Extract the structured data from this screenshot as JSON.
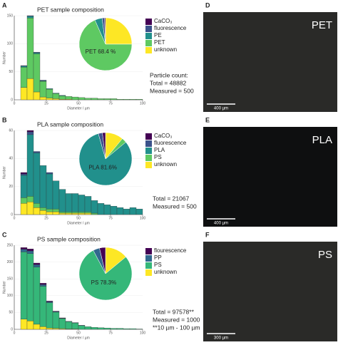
{
  "chart_data": [
    {
      "type": "histogram",
      "label": "A",
      "title": "PET sample composition",
      "xlabel": "Diameter / µm",
      "ylabel": "Number",
      "bins": [
        5,
        10,
        15,
        20,
        25,
        30,
        35,
        40,
        45,
        50,
        55,
        60,
        65,
        70,
        75,
        80,
        85,
        90,
        95,
        100
      ],
      "xlim": [
        0,
        100
      ],
      "xticks": [
        0,
        25,
        50,
        75,
        100
      ],
      "ylim": [
        0,
        150
      ],
      "yticks": [
        0,
        50,
        100,
        150
      ],
      "series": [
        {
          "color": "#fde725",
          "values": [
            22,
            38,
            14,
            5,
            3,
            2,
            1,
            1,
            0,
            0,
            0,
            0,
            0,
            0,
            0,
            0,
            0,
            0,
            0
          ]
        },
        {
          "color": "#5ec962",
          "values": [
            36,
            108,
            68,
            28,
            16,
            9,
            6,
            5,
            5,
            4,
            3,
            3,
            2,
            2,
            2,
            1,
            1,
            1,
            1
          ]
        },
        {
          "color": "#21908c",
          "values": [
            2,
            3,
            2,
            1,
            1,
            1,
            1,
            0,
            0,
            0,
            0,
            0,
            0,
            0,
            0,
            0,
            0,
            0,
            0
          ]
        },
        {
          "color": "#3b528b",
          "values": [
            1,
            1,
            1,
            1,
            0,
            0,
            0,
            0,
            0,
            0,
            0,
            0,
            0,
            0,
            0,
            0,
            0,
            0,
            0
          ]
        }
      ],
      "pie": {
        "type": "pie",
        "categories": [
          "CaCO₃",
          "fluorescence",
          "PE",
          "PET",
          "unknown"
        ],
        "values": [
          0.6,
          1.5,
          4.5,
          68.4,
          25
        ],
        "colors": [
          "#440154",
          "#3b528b",
          "#21908c",
          "#5ec962",
          "#fde725"
        ],
        "value_labels": [
          null,
          null,
          null,
          "PET 68.4 %",
          null
        ]
      },
      "notes": [
        "Particle count:",
        "Total = 48882",
        "Measured = 500"
      ]
    },
    {
      "type": "histogram",
      "label": "B",
      "title": "PLA sample composition",
      "xlabel": "Diameter / µm",
      "ylabel": "Number",
      "bins": [
        5,
        10,
        15,
        20,
        25,
        30,
        35,
        40,
        45,
        50,
        55,
        60,
        65,
        70,
        75,
        80,
        85,
        90,
        95,
        100
      ],
      "xlim": [
        0,
        100
      ],
      "xticks": [
        0,
        25,
        50,
        75,
        100
      ],
      "ylim": [
        0,
        60
      ],
      "yticks": [
        0,
        20,
        40,
        60
      ],
      "series": [
        {
          "color": "#fde725",
          "values": [
            8,
            9,
            5,
            3,
            2,
            2,
            1,
            1,
            1,
            1,
            1,
            0,
            0,
            0,
            0,
            0,
            0,
            0,
            0
          ]
        },
        {
          "color": "#5ec962",
          "values": [
            4,
            4,
            3,
            2,
            2,
            2,
            1,
            1,
            1,
            1,
            1,
            1,
            0,
            0,
            0,
            0,
            0,
            0,
            0
          ]
        },
        {
          "color": "#21908c",
          "values": [
            16,
            44,
            36,
            30,
            25,
            20,
            16,
            13,
            13,
            12,
            11,
            9,
            8,
            7,
            6,
            5,
            4,
            5,
            4
          ]
        },
        {
          "color": "#3b528b",
          "values": [
            1,
            2,
            1,
            0,
            1,
            0,
            0,
            0,
            0,
            0,
            0,
            0,
            0,
            0,
            0,
            0,
            0,
            0,
            0
          ]
        },
        {
          "color": "#440154",
          "values": [
            1,
            1,
            0,
            0,
            0,
            0,
            0,
            0,
            0,
            0,
            0,
            0,
            0,
            0,
            0,
            0,
            0,
            0,
            0
          ]
        }
      ],
      "pie": {
        "type": "pie",
        "categories": [
          "CaCO₃",
          "fluorescence",
          "PLA",
          "PS",
          "unknown"
        ],
        "values": [
          1.9,
          2.5,
          81.6,
          3,
          11
        ],
        "colors": [
          "#440154",
          "#3b528b",
          "#21908c",
          "#5ec962",
          "#fde725"
        ],
        "value_labels": [
          null,
          null,
          "PLA 81.6%",
          null,
          null
        ]
      },
      "notes": [
        "Total = 21067",
        "Measured = 500"
      ]
    },
    {
      "type": "histogram",
      "label": "C",
      "title": "PS sample composition",
      "xlabel": "Diameter / µm",
      "ylabel": "Number",
      "bins": [
        5,
        10,
        15,
        20,
        25,
        30,
        35,
        40,
        45,
        50,
        55,
        60,
        65,
        70,
        75,
        80,
        85,
        90,
        95,
        100
      ],
      "xlim": [
        0,
        100
      ],
      "xticks": [
        0,
        25,
        50,
        75,
        100
      ],
      "ylim": [
        0,
        250
      ],
      "yticks": [
        0,
        50,
        100,
        150,
        200,
        250
      ],
      "series": [
        {
          "color": "#fde725",
          "values": [
            30,
            25,
            15,
            8,
            4,
            3,
            2,
            1,
            1,
            0,
            0,
            0,
            0,
            0,
            0,
            0,
            0,
            0,
            0
          ]
        },
        {
          "color": "#35b779",
          "values": [
            200,
            200,
            170,
            120,
            75,
            48,
            30,
            22,
            18,
            11,
            8,
            6,
            5,
            4,
            3,
            3,
            2,
            2,
            1
          ]
        },
        {
          "color": "#31688e",
          "values": [
            8,
            8,
            7,
            5,
            3,
            2,
            1,
            1,
            1,
            1,
            0,
            0,
            0,
            0,
            0,
            0,
            0,
            0,
            0
          ]
        },
        {
          "color": "#440154",
          "values": [
            5,
            6,
            5,
            4,
            2,
            1,
            1,
            0,
            0,
            0,
            0,
            0,
            0,
            0,
            0,
            0,
            0,
            0,
            0
          ]
        }
      ],
      "pie": {
        "type": "pie",
        "categories": [
          "flourescence",
          "PP",
          "PS",
          "unknown"
        ],
        "values": [
          3.7,
          4,
          78.3,
          14
        ],
        "colors": [
          "#440154",
          "#31688e",
          "#35b779",
          "#fde725"
        ],
        "value_labels": [
          null,
          null,
          "PS 78.3%",
          null
        ]
      },
      "notes": [
        "Total = 97578**",
        "Measured = 1000",
        "**10 µm - 100 µm"
      ]
    }
  ],
  "images": [
    {
      "label": "D",
      "name": "PET",
      "scale": "400 µm"
    },
    {
      "label": "E",
      "name": "PLA",
      "scale": "400 µm"
    },
    {
      "label": "F",
      "name": "PS",
      "scale": "300 µm"
    }
  ]
}
